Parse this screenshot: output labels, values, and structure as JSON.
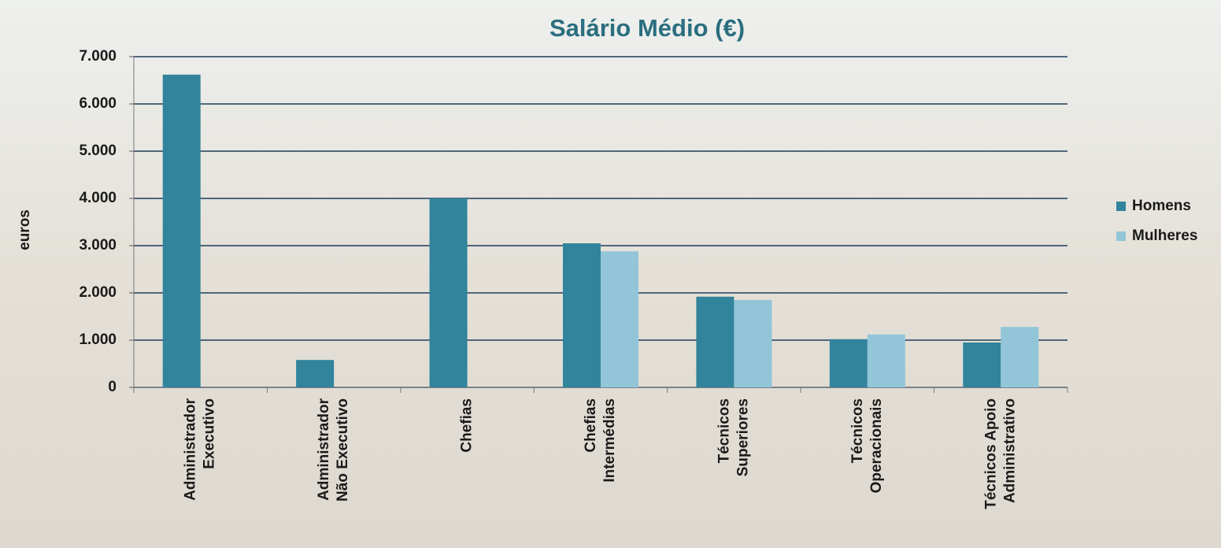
{
  "chart_data": {
    "type": "bar",
    "title": "Salário Médio (€)",
    "y_label": "euros",
    "categories": [
      [
        "Administrador",
        "Executivo"
      ],
      [
        "Administrador",
        "Não Executivo"
      ],
      [
        "Chefias"
      ],
      [
        "Chefias",
        "Intermédias"
      ],
      [
        "Técnicos",
        "Superiores"
      ],
      [
        "Técnicos",
        "Operacionais"
      ],
      [
        "Técnicos Apoio",
        "Administrativo"
      ]
    ],
    "series": [
      {
        "name": "Homens",
        "color": "#31849b",
        "values": [
          6620,
          580,
          4000,
          3050,
          1920,
          1020,
          950
        ]
      },
      {
        "name": "Mulheres",
        "color": "#92c5d8",
        "values": [
          null,
          null,
          null,
          2880,
          1850,
          1120,
          1280
        ]
      }
    ],
    "ylim": [
      0,
      7000
    ],
    "yticks": [
      0,
      {
        "value": 1000,
        "label": "1.000"
      },
      {
        "value": 2000,
        "label": "2.000"
      },
      {
        "value": 3000,
        "label": "3.000"
      },
      {
        "value": 4000,
        "label": "4.000"
      },
      {
        "value": 5000,
        "label": "5.000"
      },
      {
        "value": 6000,
        "label": "6.000"
      },
      {
        "value": 7000,
        "label": "7.000"
      }
    ],
    "grid": true,
    "legend": "right"
  }
}
